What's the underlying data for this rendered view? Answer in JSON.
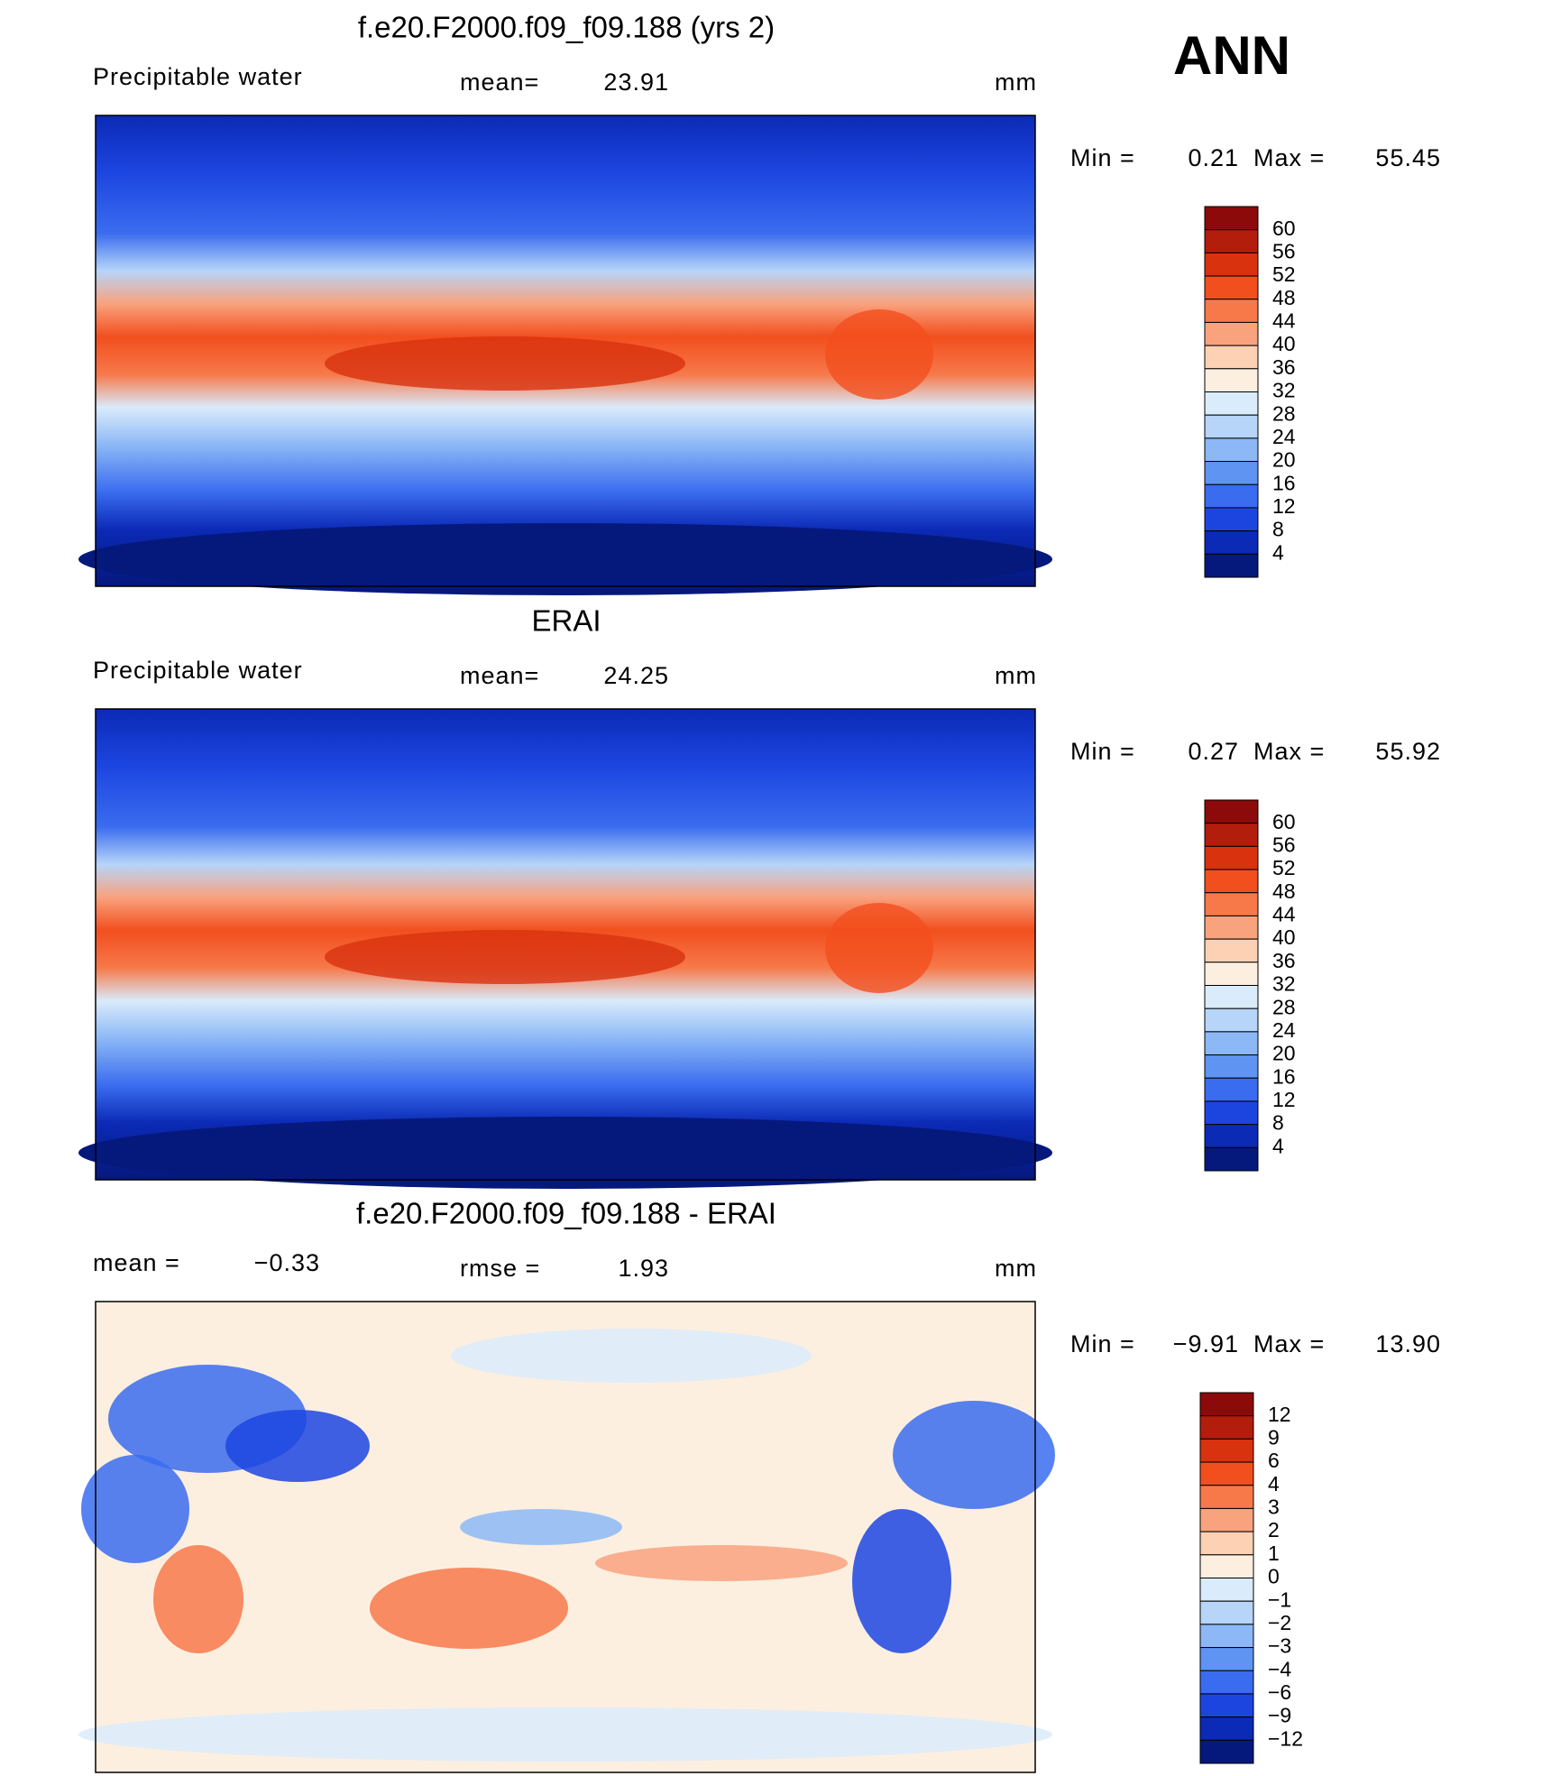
{
  "header": {
    "season": "ANN"
  },
  "panels": [
    {
      "title": "f.e20.F2000.f09_f09.188 (yrs 2)",
      "left_label": "Precipitable water",
      "center_label": "mean=",
      "center_value": "23.91",
      "units": "mm",
      "min_label": "Min =",
      "min": "0.21",
      "max_label": "Max =",
      "max": "55.45",
      "colorbar": {
        "labels": [
          "60",
          "56",
          "52",
          "48",
          "44",
          "40",
          "36",
          "32",
          "28",
          "24",
          "20",
          "16",
          "12",
          "8",
          "4"
        ],
        "colors": [
          "#8c0a0a",
          "#b31d0c",
          "#d8320f",
          "#f24f1e",
          "#f7794a",
          "#f9a27e",
          "#fcd1b4",
          "#fdefe0",
          "#daebfb",
          "#b6d5f9",
          "#8cb8f6",
          "#5f94f2",
          "#3a6cef",
          "#1c45e0",
          "#0b2ab6",
          "#05187c"
        ]
      }
    },
    {
      "title": "ERAI",
      "left_label": "Precipitable water",
      "center_label": "mean=",
      "center_value": "24.25",
      "units": "mm",
      "min_label": "Min =",
      "min": "0.27",
      "max_label": "Max =",
      "max": "55.92",
      "colorbar": {
        "labels": [
          "60",
          "56",
          "52",
          "48",
          "44",
          "40",
          "36",
          "32",
          "28",
          "24",
          "20",
          "16",
          "12",
          "8",
          "4"
        ],
        "colors": [
          "#8c0a0a",
          "#b31d0c",
          "#d8320f",
          "#f24f1e",
          "#f7794a",
          "#f9a27e",
          "#fcd1b4",
          "#fdefe0",
          "#daebfb",
          "#b6d5f9",
          "#8cb8f6",
          "#5f94f2",
          "#3a6cef",
          "#1c45e0",
          "#0b2ab6",
          "#05187c"
        ]
      }
    },
    {
      "title": "f.e20.F2000.f09_f09.188 - ERAI",
      "left_label": "mean =",
      "left_value": "−0.33",
      "center_label": "rmse =",
      "center_value": "1.93",
      "units": "mm",
      "min_label": "Min =",
      "min": "−9.91",
      "max_label": "Max =",
      "max": "13.90",
      "colorbar": {
        "labels": [
          "12",
          "9",
          "6",
          "4",
          "3",
          "2",
          "1",
          "0",
          "−1",
          "−2",
          "−3",
          "−4",
          "−6",
          "−9",
          "−12"
        ],
        "colors": [
          "#8c0a0a",
          "#b31d0c",
          "#d8320f",
          "#f24f1e",
          "#f7794a",
          "#f9a27e",
          "#fcd1b4",
          "#fdefe0",
          "#daebfb",
          "#b6d5f9",
          "#8cb8f6",
          "#5f94f2",
          "#3a6cef",
          "#1c45e0",
          "#0b2ab6",
          "#05187c"
        ]
      }
    }
  ]
}
